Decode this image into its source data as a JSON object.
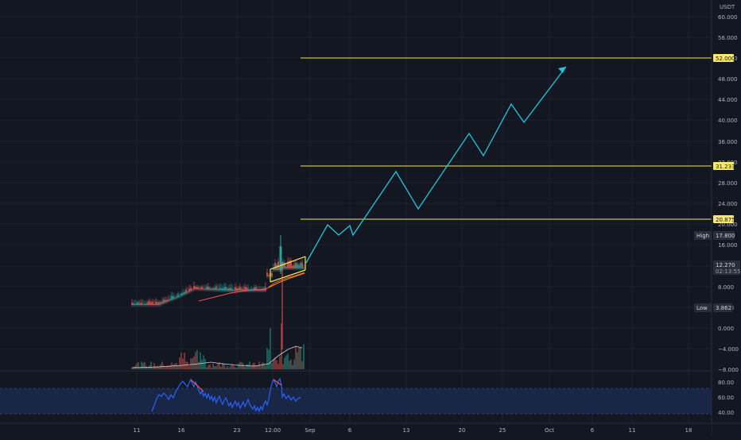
{
  "price_axis": {
    "currency": "USDT",
    "ticks": [
      "60.000",
      "56.000",
      "52.000",
      "48.000",
      "44.000",
      "40.000",
      "36.000",
      "32.000",
      "28.000",
      "24.000",
      "20.000",
      "16.000",
      "12.000",
      "8.000",
      "4.000",
      "0.000",
      "−4.000",
      "−8.000"
    ]
  },
  "price_badges": {
    "level_high": "52.000",
    "level_mid": "31.233",
    "level_low": "20.875",
    "high_label": "High",
    "high_value": "17.800",
    "current_price": "12.270",
    "countdown": "02:13:55",
    "low_label": "Low",
    "low_value": "3.862"
  },
  "rsi_axis": {
    "ticks": [
      "80.00",
      "60.00",
      "40.00"
    ]
  },
  "time_axis": {
    "ticks": [
      "11",
      "16",
      "23",
      "12:00",
      "Sep",
      "6",
      "13",
      "20",
      "25",
      "Oct",
      "6",
      "11",
      "18"
    ]
  },
  "colors": {
    "background": "#131722",
    "grid": "#1e222d",
    "level_line": "#f5e84a",
    "projection": "#26c6da",
    "candle_up": "#26a69a",
    "candle_down": "#ef5350",
    "rsi_line": "#2962ff",
    "rsi_band": "#1e2a4a",
    "badge_dark": "#2a2e39",
    "badge_level": "#f9e96b"
  }
}
